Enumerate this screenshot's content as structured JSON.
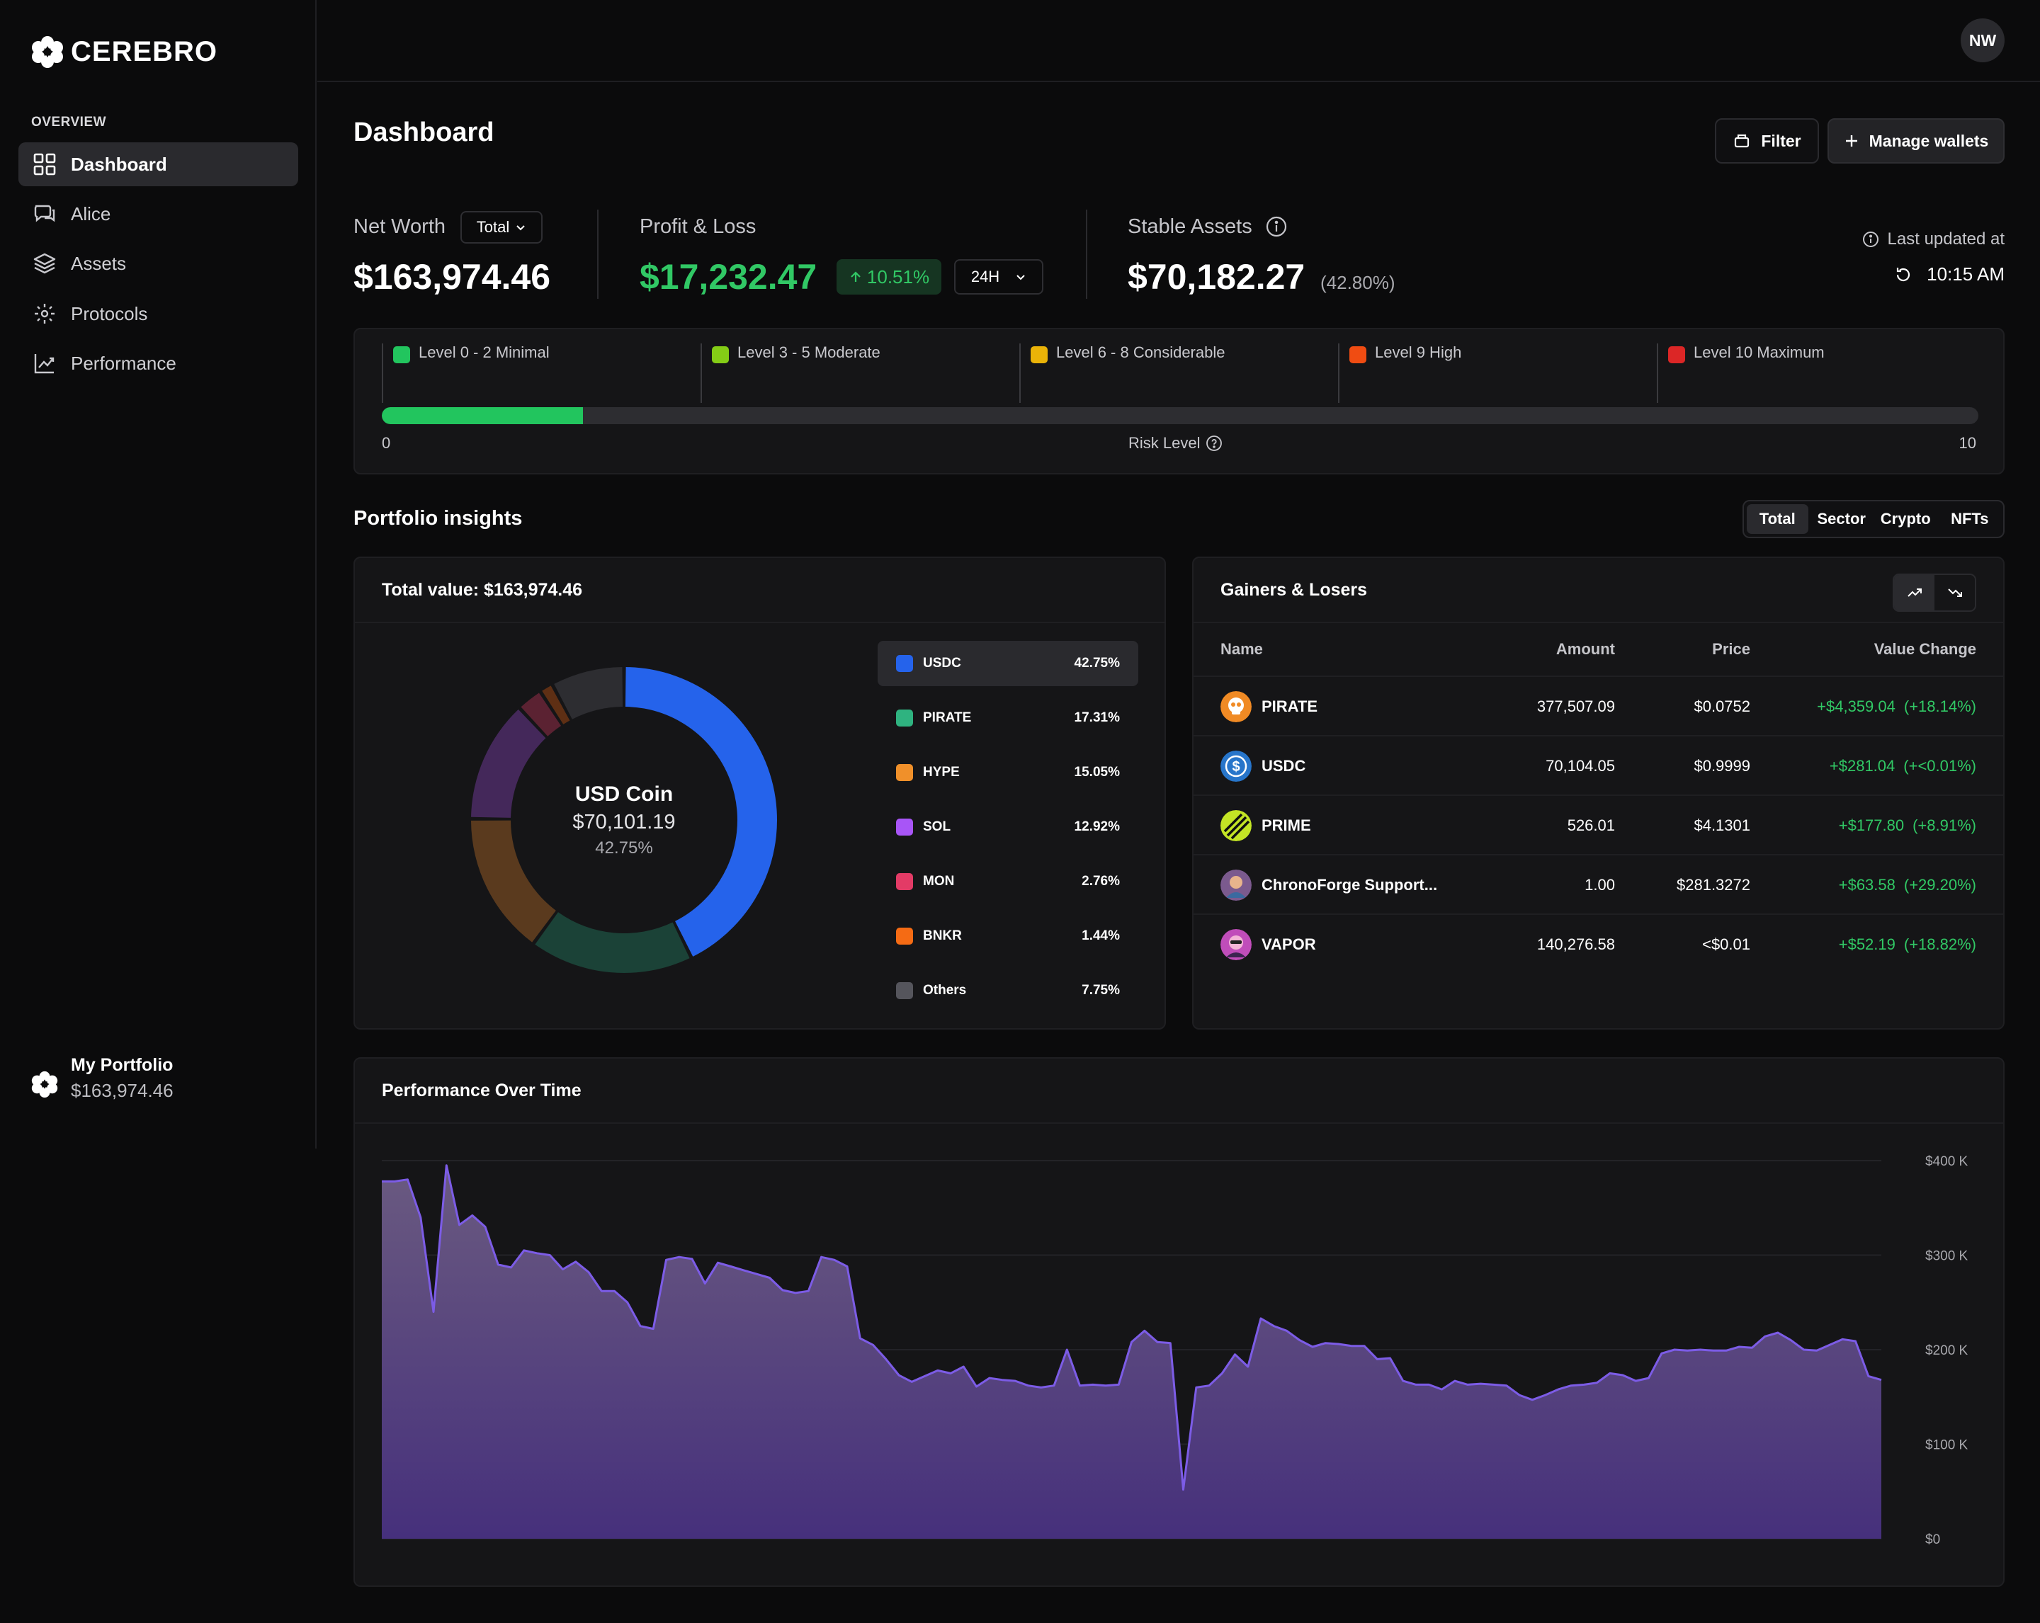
{
  "brand": {
    "name": "CEREBRO"
  },
  "user": {
    "initials": "NW"
  },
  "sidebar": {
    "heading": "OVERVIEW",
    "items": [
      {
        "label": "Dashboard",
        "icon": "grid-icon",
        "active": true
      },
      {
        "label": "Alice",
        "icon": "chat-icon",
        "active": false
      },
      {
        "label": "Assets",
        "icon": "layers-icon",
        "active": false
      },
      {
        "label": "Protocols",
        "icon": "protocols-icon",
        "active": false
      },
      {
        "label": "Performance",
        "icon": "trend-chart-icon",
        "active": false
      }
    ],
    "portfolio": {
      "label": "My Portfolio",
      "value": "$163,974.46"
    }
  },
  "header": {
    "title": "Dashboard",
    "filter_label": "Filter",
    "manage_label": "Manage wallets"
  },
  "stats": {
    "net_worth": {
      "label": "Net Worth",
      "select": "Total",
      "value": "$163,974.46"
    },
    "pnl": {
      "label": "Profit & Loss",
      "value": "$17,232.47",
      "change": "10.51%",
      "period": "24H"
    },
    "stable": {
      "label": "Stable Assets",
      "value": "$70,182.27",
      "share": "(42.80%)"
    },
    "updated": {
      "label": "Last updated at",
      "time": "10:15 AM"
    }
  },
  "risk": {
    "levels": [
      {
        "label": "Level 0 - 2 Minimal",
        "color": "#22c55e"
      },
      {
        "label": "Level 3 - 5 Moderate",
        "color": "#84cc16"
      },
      {
        "label": "Level 6 - 8 Considerable",
        "color": "#eab308"
      },
      {
        "label": "Level 9 High",
        "color": "#f04c12"
      },
      {
        "label": "Level 10 Maximum",
        "color": "#dc2626"
      }
    ],
    "value_fraction": 0.126,
    "min_label": "0",
    "max_label": "10",
    "axis_label": "Risk Level"
  },
  "insights": {
    "title": "Portfolio insights",
    "tabs": [
      "Total",
      "Sector",
      "Crypto",
      "NFTs"
    ],
    "active_tab": "Total"
  },
  "allocation": {
    "title": "Total value: $163,974.46",
    "center": {
      "name": "USD Coin",
      "value": "$70,101.19",
      "pct": "42.75%"
    },
    "items": [
      {
        "name": "USDC",
        "pct": "42.75%",
        "share": 42.75,
        "color": "#2563eb",
        "ring": "#2563eb"
      },
      {
        "name": "PIRATE",
        "pct": "17.31%",
        "share": 17.31,
        "color": "#2fb380",
        "ring": "#1b4237"
      },
      {
        "name": "HYPE",
        "pct": "15.05%",
        "share": 15.05,
        "color": "#f0902a",
        "ring": "#5a3a1e"
      },
      {
        "name": "SOL",
        "pct": "12.92%",
        "share": 12.92,
        "color": "#a855f7",
        "ring": "#44285a"
      },
      {
        "name": "MON",
        "pct": "2.76%",
        "share": 2.76,
        "color": "#e33b66",
        "ring": "#5b2232"
      },
      {
        "name": "BNKR",
        "pct": "1.44%",
        "share": 1.44,
        "color": "#f56b14",
        "ring": "#5e2f14"
      },
      {
        "name": "Others",
        "pct": "7.75%",
        "share": 7.75,
        "color": "#55555c",
        "ring": "#2d2d31"
      }
    ]
  },
  "gainers": {
    "title": "Gainers & Losers",
    "columns": {
      "name": "Name",
      "amount": "Amount",
      "price": "Price",
      "change": "Value Change"
    },
    "rows": [
      {
        "name": "PIRATE",
        "amount": "377,507.09",
        "price": "$0.0752",
        "change": "+$4,359.04",
        "pct": "(+18.14%)",
        "icon": "pirate-skull-icon",
        "icolor": "#f08a24"
      },
      {
        "name": "USDC",
        "amount": "70,104.05",
        "price": "$0.9999",
        "change": "+$281.04",
        "pct": "(+<0.01%)",
        "icon": "usdc-icon",
        "icolor": "#2775ca"
      },
      {
        "name": "PRIME",
        "amount": "526.01",
        "price": "$4.1301",
        "change": "+$177.80",
        "pct": "(+8.91%)",
        "icon": "prime-icon",
        "icolor": "#c3e425"
      },
      {
        "name": "ChronoForge Support...",
        "amount": "1.00",
        "price": "$281.3272",
        "change": "+$63.58",
        "pct": "(+29.20%)",
        "icon": "chronoforge-icon",
        "icolor": "#8a6a9e"
      },
      {
        "name": "VAPOR",
        "amount": "140,276.58",
        "price": "<$0.01",
        "change": "+$52.19",
        "pct": "(+18.82%)",
        "icon": "vapor-icon",
        "icolor": "#c04dba"
      }
    ]
  },
  "performance": {
    "title": "Performance Over Time"
  },
  "chart_data": {
    "type": "area",
    "ylim": [
      0,
      400000
    ],
    "yticks": [
      0,
      100000,
      200000,
      300000,
      400000
    ],
    "ytick_labels": [
      "$0",
      "$100 K",
      "$200 K",
      "$300 K",
      "$400 K"
    ],
    "color": "#7c5ce6",
    "grid": true,
    "values": [
      378000,
      378000,
      380000,
      340000,
      240000,
      395000,
      332000,
      342000,
      330000,
      290000,
      287000,
      305000,
      302000,
      300000,
      285000,
      293000,
      282000,
      262000,
      262000,
      250000,
      225000,
      222000,
      295000,
      298000,
      296000,
      270000,
      292000,
      288000,
      284000,
      280000,
      276000,
      263000,
      260000,
      262000,
      298000,
      295000,
      288000,
      212000,
      205000,
      190000,
      173000,
      166000,
      172000,
      178000,
      175000,
      182000,
      161000,
      170000,
      168000,
      167000,
      162000,
      160000,
      162000,
      200000,
      162000,
      163000,
      162000,
      163000,
      208000,
      220000,
      208000,
      207000,
      52000,
      160000,
      162000,
      175000,
      195000,
      182000,
      233000,
      225000,
      220000,
      210000,
      203000,
      207000,
      206000,
      204000,
      204000,
      190000,
      191000,
      167000,
      163000,
      163000,
      158000,
      167000,
      163000,
      164000,
      163000,
      162000,
      152000,
      147000,
      152000,
      158000,
      162000,
      163000,
      165000,
      175000,
      173000,
      167000,
      170000,
      196000,
      200000,
      199000,
      200000,
      199000,
      199000,
      203000,
      202000,
      214000,
      218000,
      210000,
      200000,
      199000,
      205000,
      211000,
      209000,
      172000,
      168000
    ]
  }
}
